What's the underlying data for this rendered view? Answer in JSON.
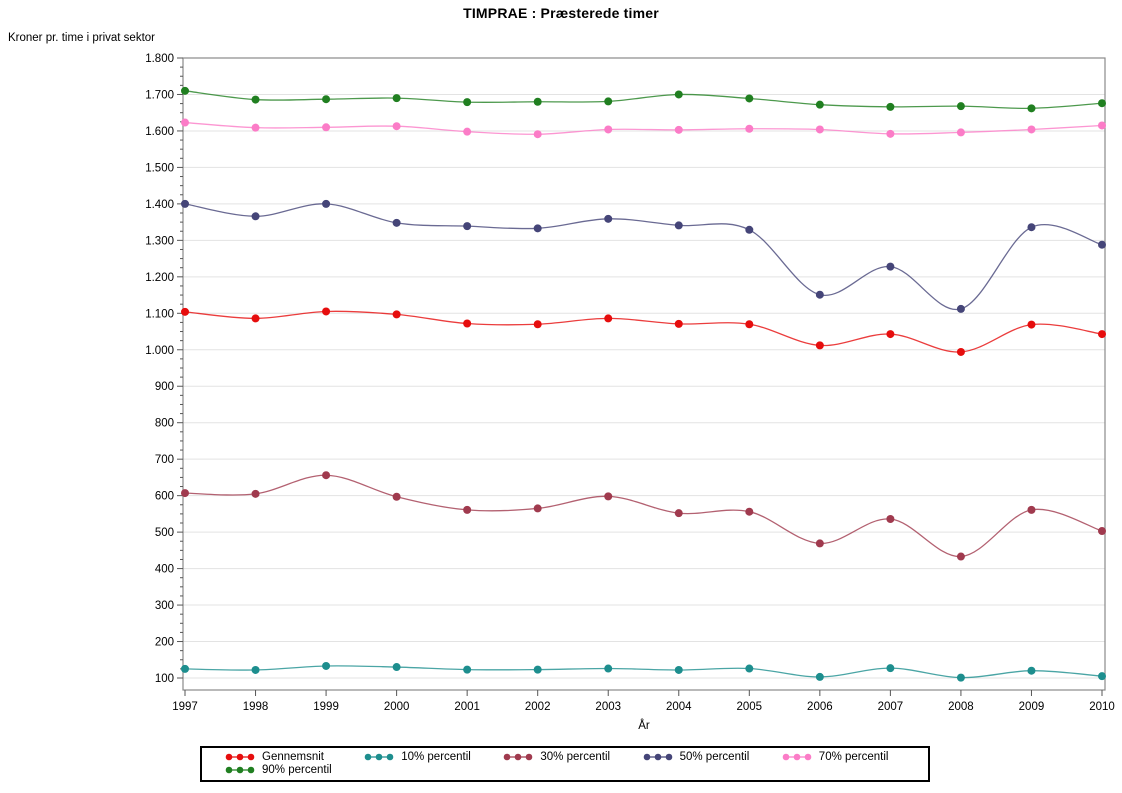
{
  "chart_data": {
    "type": "line",
    "title": "TIMPRAE : Præsterede timer",
    "xlabel": "År",
    "ylabel": "Kroner pr. time i privat sektor",
    "grid": true,
    "legend_position": "bottom",
    "legend_columns": 5,
    "x": [
      1997,
      1998,
      1999,
      2000,
      2001,
      2002,
      2003,
      2004,
      2005,
      2006,
      2007,
      2008,
      2009,
      2010
    ],
    "ylim": [
      67,
      1800
    ],
    "y_tick_values": [
      100,
      200,
      300,
      400,
      500,
      600,
      700,
      800,
      900,
      1000,
      1100,
      1200,
      1300,
      1400,
      1500,
      1600,
      1700,
      1800
    ],
    "y_tick_labels": [
      "100",
      "200",
      "300",
      "400",
      "500",
      "600",
      "700",
      "800",
      "900",
      "1.000",
      "1.100",
      "1.200",
      "1.300",
      "1.400",
      "1.500",
      "1.600",
      "1.700",
      "1.800"
    ],
    "minor_ticks_per_interval": 3,
    "series": [
      {
        "name": "Gennemsnit",
        "color": "#e60d0d",
        "values": [
          1104,
          1086,
          1105,
          1097,
          1072,
          1070,
          1086,
          1071,
          1070,
          1012,
          1043,
          994,
          1069,
          1043
        ]
      },
      {
        "name": "10% percentil",
        "color": "#1d8e8e",
        "values": [
          125,
          122,
          133,
          130,
          123,
          123,
          126,
          122,
          126,
          103,
          127,
          101,
          120,
          105
        ]
      },
      {
        "name": "30% percentil",
        "color": "#a03a4e",
        "values": [
          607,
          605,
          656,
          597,
          561,
          565,
          598,
          552,
          556,
          469,
          536,
          433,
          561,
          503
        ]
      },
      {
        "name": "50% percentil",
        "color": "#454578",
        "values": [
          1400,
          1366,
          1400,
          1348,
          1339,
          1333,
          1359,
          1341,
          1329,
          1151,
          1228,
          1112,
          1336,
          1288
        ]
      },
      {
        "name": "70% percentil",
        "color": "#fb7cc7",
        "values": [
          1623,
          1609,
          1610,
          1613,
          1598,
          1591,
          1604,
          1603,
          1606,
          1604,
          1592,
          1596,
          1604,
          1615
        ]
      },
      {
        "name": "90% percentil",
        "color": "#207f20",
        "values": [
          1710,
          1686,
          1687,
          1690,
          1679,
          1680,
          1681,
          1700,
          1689,
          1672,
          1666,
          1668,
          1662,
          1676
        ]
      }
    ],
    "style": {
      "grid_color": "#e3e3e3",
      "frame_color": "#8a8a8a",
      "tick_color": "#555555",
      "background": "#ffffff"
    }
  }
}
